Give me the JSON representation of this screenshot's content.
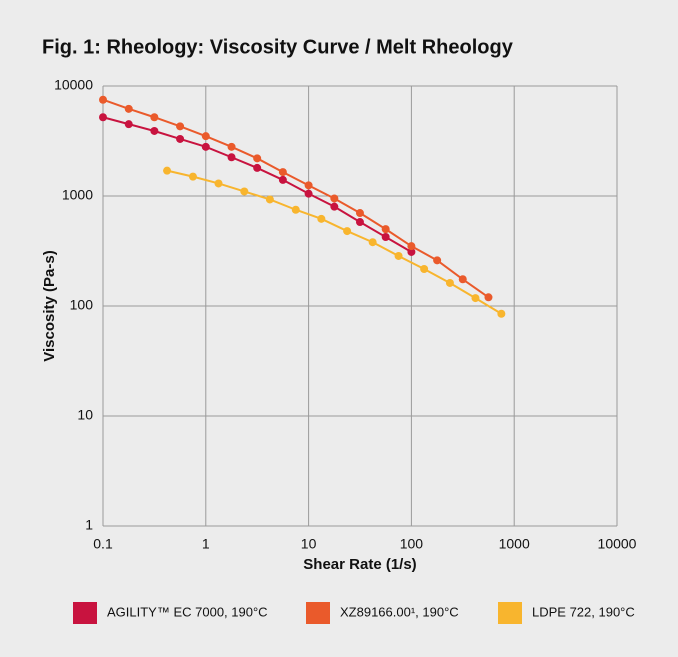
{
  "chart_data": {
    "type": "line",
    "title": "Fig. 1: Rheology: Viscosity Curve / Melt Rheology",
    "x_label": "Shear Rate (1/s)",
    "y_label": "Viscosity (Pa-s)",
    "x_log": true,
    "y_log": true,
    "grid": true,
    "legend": "bottom",
    "xlim": [
      0.1,
      10000
    ],
    "ylim": [
      1,
      10000
    ],
    "xticks": [
      0.1,
      1,
      10,
      100,
      1000,
      10000
    ],
    "yticks": [
      1,
      10,
      100,
      1000,
      10000
    ],
    "series": [
      {
        "name": "AGILITY™ EC 7000, 190°C",
        "color": "#c8133f",
        "x": [
          0.1,
          0.178,
          0.316,
          0.562,
          1,
          1.78,
          3.16,
          5.62,
          10,
          17.8,
          31.6,
          56.2,
          100
        ],
        "values": [
          5200,
          4500,
          3900,
          3300,
          2800,
          2250,
          1800,
          1400,
          1050,
          800,
          580,
          424,
          310
        ]
      },
      {
        "name": "XZ89166.00¹, 190°C",
        "color": "#ea5a2b",
        "x": [
          0.1,
          0.178,
          0.316,
          0.562,
          1,
          1.78,
          3.16,
          5.62,
          10,
          17.8,
          31.6,
          56.2,
          100,
          178,
          316,
          562
        ],
        "values": [
          7500,
          6200,
          5200,
          4300,
          3500,
          2800,
          2200,
          1650,
          1250,
          950,
          700,
          500,
          350,
          260,
          175,
          120
        ]
      },
      {
        "name": "LDPE 722, 190°C",
        "color": "#f8b52e",
        "x": [
          0.42,
          0.75,
          1.33,
          2.37,
          4.2,
          7.5,
          13.3,
          23.7,
          42,
          75,
          133,
          237,
          420,
          750
        ],
        "values": [
          1700,
          1500,
          1300,
          1100,
          930,
          750,
          620,
          480,
          380,
          285,
          217,
          162,
          118,
          85
        ]
      }
    ]
  }
}
